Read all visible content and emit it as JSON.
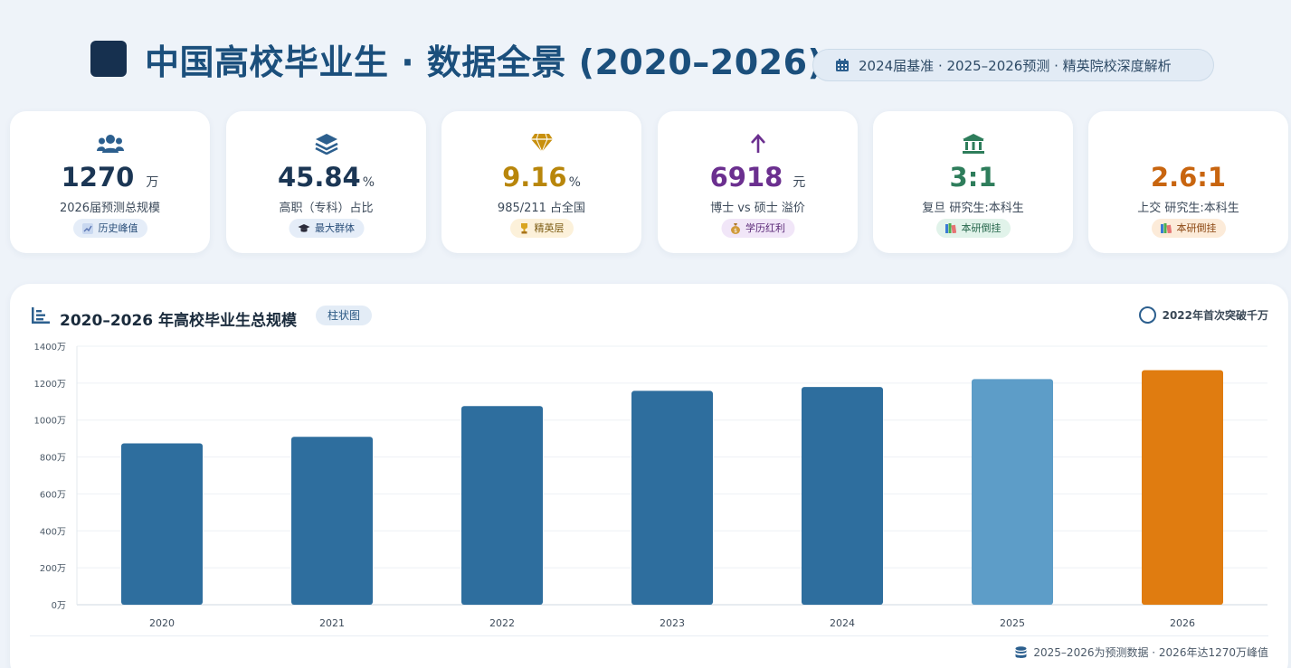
{
  "header": {
    "title": "中国高校毕业生 · 数据全景 (2020–2026)",
    "subtitle": "2024届基准 · 2025–2026预测 · 精英院校深度解析",
    "subtitle_icon": "calendar-icon",
    "logo_color": "#16304f"
  },
  "kpis": [
    {
      "icon": "users-icon",
      "value": "1270",
      "unit": "万",
      "label": "2026届预测总规模",
      "badge": "历史峰值",
      "badge_icon": "chart-icon",
      "color": "#1b3654",
      "badge_bg": "#e5edf8",
      "badge_fg": "#2a4f7a"
    },
    {
      "icon": "layers-icon",
      "value": "45.84",
      "unit": "%",
      "label": "高职（专科）占比",
      "badge": "最大群体",
      "badge_icon": "graduation-cap-icon",
      "color": "#1b3654",
      "badge_bg": "#e5edf8",
      "badge_fg": "#2a4f7a"
    },
    {
      "icon": "gem-icon",
      "value": "9.16",
      "unit": "%",
      "label": "985/211 占全国",
      "badge": "精英层",
      "badge_icon": "trophy-icon",
      "color": "#b8860b",
      "badge_bg": "#fcf1da",
      "badge_fg": "#7a5a10"
    },
    {
      "icon": "arrow-up-icon",
      "value": "6918",
      "unit": "元",
      "label": "博士 vs 硕士 溢价",
      "badge": "学历红利",
      "badge_icon": "money-bag-icon",
      "color": "#6b2f8f",
      "badge_bg": "#f1e6f8",
      "badge_fg": "#5b2a78"
    },
    {
      "icon": "bank-icon",
      "value": "3:1",
      "unit": "",
      "label": "复旦 研究生:本科生",
      "badge": "本研倒挂",
      "badge_icon": "books-icon",
      "color": "#2e7d5b",
      "badge_bg": "#e1f3ea",
      "badge_fg": "#24654a"
    },
    {
      "icon": "none",
      "value": "2.6:1",
      "unit": "",
      "label": "上交 研究生:本科生",
      "badge": "本研倒挂",
      "badge_icon": "books-icon",
      "color": "#c8650f",
      "badge_bg": "#fcebd9",
      "badge_fg": "#8a4510"
    }
  ],
  "chart": {
    "title": "2020–2026 年高校毕业生总规模",
    "tag": "柱状图",
    "note": "2022年首次突破千万",
    "footer": "2025–2026为预测数据 · 2026年达1270万峰值",
    "footer_icon": "database-icon",
    "title_icon": "bar-chart-icon"
  },
  "chart_data": {
    "type": "bar",
    "title": "2020–2026 年高校毕业生总规模",
    "categories": [
      "2020",
      "2021",
      "2022",
      "2023",
      "2024",
      "2025",
      "2026"
    ],
    "values": [
      874,
      909,
      1076,
      1158,
      1179,
      1222,
      1270
    ],
    "value_kind": [
      "actual",
      "actual",
      "actual",
      "actual",
      "actual",
      "forecast",
      "forecast"
    ],
    "colors": [
      "#2e6e9e",
      "#2e6e9e",
      "#2e6e9e",
      "#2e6e9e",
      "#2e6e9e",
      "#5d9dc8",
      "#e07c10"
    ],
    "ylim": [
      0,
      1400
    ],
    "yticks": [
      0,
      200,
      400,
      600,
      800,
      1000,
      1200,
      1400
    ],
    "y_unit": "万",
    "grid": true
  }
}
